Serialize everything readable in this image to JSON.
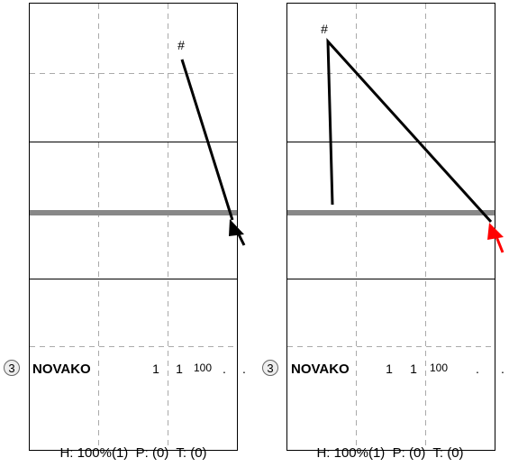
{
  "panels": [
    {
      "id": "left",
      "marker": "#",
      "row": {
        "number": "3",
        "name": "NOVAKO",
        "cols": [
          "1",
          "1",
          "100",
          ".",
          "."
        ]
      },
      "footer": "H: 100%(1)  P: (0)  T: (0)",
      "arrow_color": "#000000"
    },
    {
      "id": "right",
      "marker": "#",
      "row": {
        "number": "3",
        "name": "NOVAKO",
        "cols": [
          "1",
          "1",
          "100",
          ".",
          "."
        ]
      },
      "footer": "H: 100%(1)  P: (0)  T: (0)",
      "arrow_color": "#ff0000"
    }
  ],
  "colors": {
    "grid_solid": "#000000",
    "grid_dashed": "#aaaaaa",
    "thick_band": "#888888",
    "path": "#000000"
  }
}
